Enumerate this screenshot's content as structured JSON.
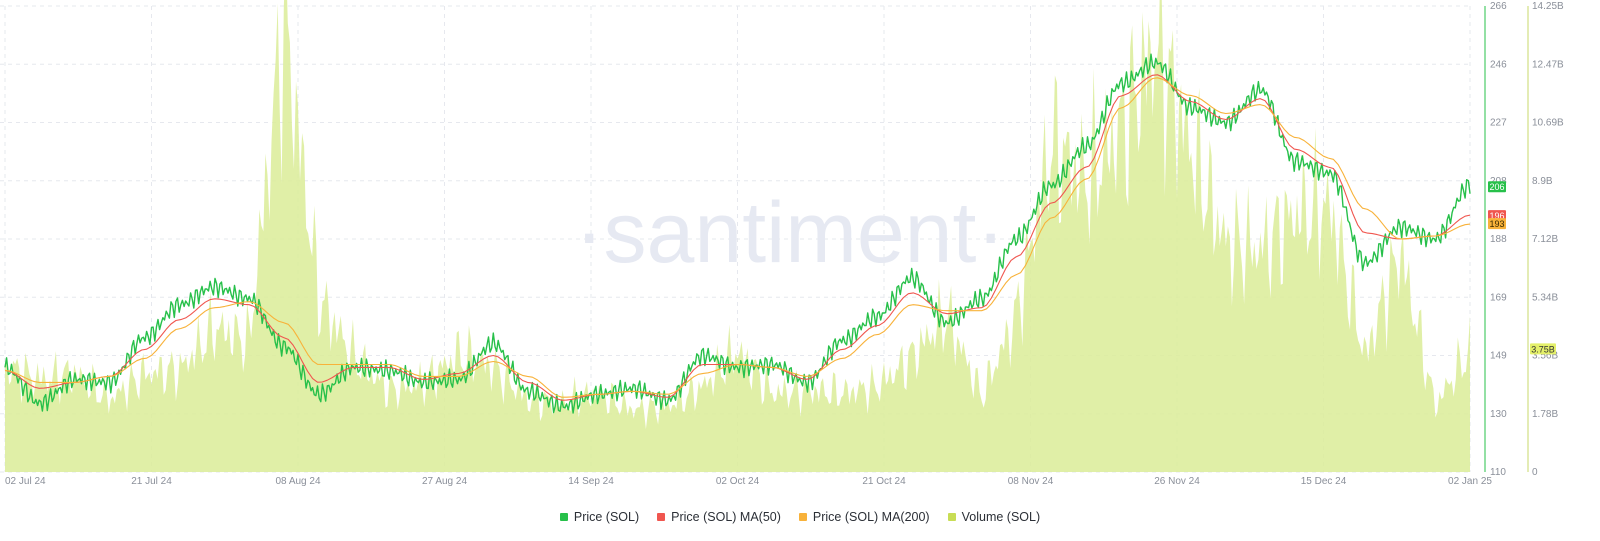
{
  "watermark": "·santiment·",
  "colors": {
    "price": "#27c04a",
    "ma50": "#f0564f",
    "ma200": "#f8b23a",
    "volume": "#dbec98",
    "grid": "#e6e8ee",
    "watermark": "#e6e9f2"
  },
  "chart_data": {
    "type": "line",
    "x_tick_labels": [
      "02 Jul 24",
      "21 Jul 24",
      "08 Aug 24",
      "27 Aug 24",
      "14 Sep 24",
      "02 Oct 24",
      "21 Oct 24",
      "08 Nov 24",
      "26 Nov 24",
      "15 Dec 24",
      "02 Jan 25"
    ],
    "y_price_ticks": [
      "266",
      "246",
      "227",
      "208",
      "188",
      "169",
      "149",
      "130",
      "110"
    ],
    "y_volume_ticks": [
      "14.25B",
      "12.47B",
      "10.69B",
      "8.9B",
      "7.12B",
      "5.34B",
      "3.56B",
      "1.78B",
      "0"
    ],
    "price_ylim": [
      110,
      266
    ],
    "volume_ylim": [
      0,
      14.25
    ],
    "volume_unit": "B",
    "grid": true,
    "legend_position": "bottom-center",
    "legend": [
      "Price (SOL)",
      "Price (SOL) MA(50)",
      "Price (SOL) MA(200)",
      "Volume (SOL)"
    ],
    "last_values": {
      "price": "206",
      "ma50": "196",
      "ma200": "193",
      "volume": "3.75B"
    },
    "x_dates": [
      "2024-07-01",
      "2024-07-05",
      "2024-07-10",
      "2024-07-15",
      "2024-07-20",
      "2024-07-25",
      "2024-07-29",
      "2024-08-02",
      "2024-08-05",
      "2024-08-08",
      "2024-08-12",
      "2024-08-17",
      "2024-08-22",
      "2024-08-27",
      "2024-09-01",
      "2024-09-06",
      "2024-09-11",
      "2024-09-16",
      "2024-09-21",
      "2024-09-26",
      "2024-09-30",
      "2024-10-04",
      "2024-10-08",
      "2024-10-13",
      "2024-10-18",
      "2024-10-23",
      "2024-10-28",
      "2024-11-01",
      "2024-11-05",
      "2024-11-08",
      "2024-11-12",
      "2024-11-16",
      "2024-11-20",
      "2024-11-23",
      "2024-11-27",
      "2024-12-01",
      "2024-12-05",
      "2024-12-10",
      "2024-12-15",
      "2024-12-20",
      "2024-12-25",
      "2024-12-30",
      "2025-01-02"
    ],
    "series": [
      {
        "name": "Price (SOL)",
        "axis": "left",
        "values": [
          145,
          133,
          141,
          140,
          155,
          166,
          172,
          168,
          152,
          136,
          145,
          144,
          140,
          141,
          153,
          137,
          132,
          136,
          138,
          134,
          149,
          145,
          146,
          140,
          154,
          162,
          175,
          160,
          168,
          188,
          206,
          219,
          240,
          247,
          232,
          227,
          238,
          214,
          210,
          180,
          192,
          188,
          206
        ]
      },
      {
        "name": "Price (SOL) MA(50)",
        "axis": "left",
        "values": [
          144,
          138,
          140,
          142,
          151,
          161,
          168,
          166,
          155,
          140,
          145,
          145,
          141,
          143,
          149,
          140,
          134,
          136,
          137,
          135,
          146,
          146,
          145,
          141,
          151,
          159,
          170,
          163,
          165,
          182,
          200,
          212,
          236,
          243,
          234,
          228,
          235,
          218,
          212,
          190,
          188,
          189,
          196
        ]
      },
      {
        "name": "Price (SOL) MA(200)",
        "axis": "left",
        "values": [
          144,
          140,
          140,
          142,
          148,
          158,
          165,
          167,
          160,
          146,
          146,
          146,
          142,
          142,
          147,
          142,
          135,
          136,
          137,
          136,
          143,
          146,
          145,
          142,
          148,
          156,
          166,
          164,
          164,
          176,
          195,
          208,
          232,
          242,
          236,
          230,
          233,
          222,
          215,
          198,
          188,
          189,
          193
        ]
      },
      {
        "name": "Volume (SOL)",
        "axis": "right",
        "values": [
          3.2,
          2.8,
          3.0,
          2.2,
          3.0,
          3.1,
          4.4,
          4.0,
          13.8,
          5.3,
          3.5,
          2.5,
          2.7,
          3.6,
          3.2,
          2.2,
          2.1,
          2.4,
          1.9,
          2.0,
          2.6,
          3.7,
          2.4,
          2.5,
          2.4,
          2.6,
          3.5,
          4.8,
          2.3,
          4.8,
          10.0,
          8.9,
          10.5,
          13.0,
          9.9,
          7.0,
          6.8,
          7.9,
          8.1,
          3.5,
          6.8,
          2.0,
          3.75
        ]
      }
    ]
  }
}
